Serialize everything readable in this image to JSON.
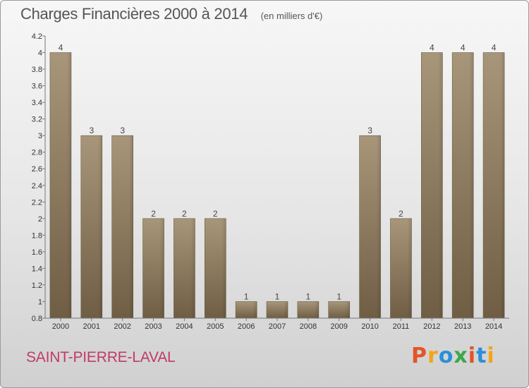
{
  "chart_data": {
    "type": "bar",
    "title": "Charges Financières 2000 à 2014",
    "subtitle": "(en milliers d'€)",
    "categories": [
      "2000",
      "2001",
      "2002",
      "2003",
      "2004",
      "2005",
      "2006",
      "2007",
      "2008",
      "2009",
      "2010",
      "2011",
      "2012",
      "2013",
      "2014"
    ],
    "values": [
      4,
      3,
      3,
      2,
      2,
      2,
      1,
      1,
      1,
      1,
      3,
      2,
      4,
      4,
      4
    ],
    "data_labels": [
      "4",
      "3",
      "3",
      "2",
      "2",
      "2",
      "1",
      "1",
      "1",
      "1",
      "3",
      "2",
      "4",
      "4",
      "4"
    ],
    "ylim": [
      0.8,
      4.2
    ],
    "yticks": [
      "0.8",
      "1",
      "1.2",
      "1.4",
      "1.6",
      "1.8",
      "2",
      "2.2",
      "2.4",
      "2.6",
      "2.8",
      "3",
      "3.2",
      "3.4",
      "3.6",
      "3.8",
      "4",
      "4.2"
    ],
    "grid": false,
    "bar_color": "#8f7c5c"
  },
  "footer": {
    "commune": "SAINT-PIERRE-LAVAL",
    "brand": "Proxiti",
    "brand_colors": [
      "#e2542a",
      "#f2a51a",
      "#2a8fd8",
      "#3aa84a",
      "#e2542a",
      "#2a8fd8",
      "#f2a51a"
    ]
  }
}
